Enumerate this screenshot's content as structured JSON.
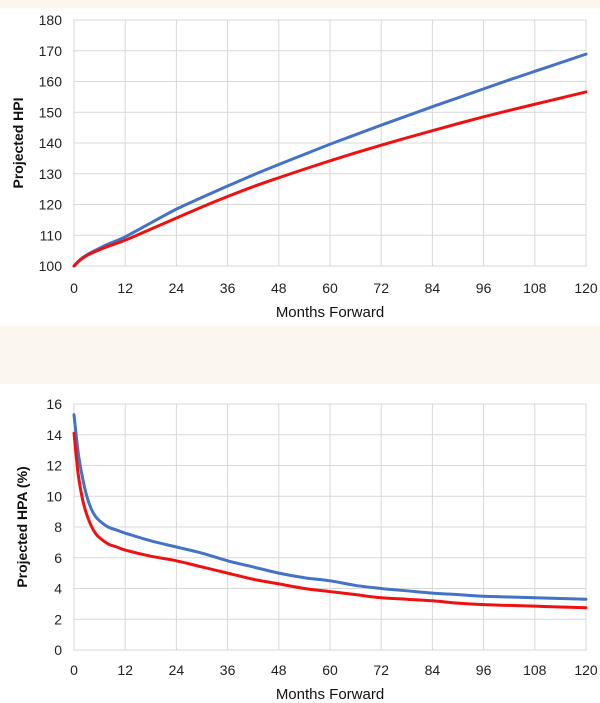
{
  "colors": {
    "series_blue": "#4472c4",
    "series_red": "#ee1111",
    "band": "#fbf7ef"
  },
  "chart_data": [
    {
      "type": "line",
      "title": "",
      "xlabel": "Months Forward",
      "ylabel": "Projected HPI",
      "xlim": [
        0,
        120
      ],
      "ylim": [
        100,
        180
      ],
      "xticks": [
        0,
        12,
        24,
        36,
        48,
        60,
        72,
        84,
        96,
        108,
        120
      ],
      "yticks": [
        100,
        110,
        120,
        130,
        140,
        150,
        160,
        170,
        180
      ],
      "grid": true,
      "legend": "none",
      "series": [
        {
          "color": "#4472c4",
          "x": [
            0,
            1,
            2,
            3,
            4,
            6,
            8,
            12,
            18,
            24,
            30,
            36,
            42,
            48,
            54,
            60,
            66,
            72,
            78,
            84,
            90,
            96,
            102,
            108,
            114,
            120
          ],
          "y": [
            100,
            101.5,
            102.7,
            103.6,
            104.4,
            105.8,
            107.1,
            109.5,
            114,
            118.5,
            122.3,
            126,
            129.6,
            133,
            136.3,
            139.6,
            142.7,
            145.8,
            148.8,
            151.8,
            154.7,
            157.6,
            160.5,
            163.3,
            166.1,
            168.9
          ]
        },
        {
          "color": "#ee1111",
          "x": [
            0,
            1,
            2,
            3,
            4,
            6,
            8,
            12,
            18,
            24,
            30,
            36,
            42,
            48,
            54,
            60,
            66,
            72,
            78,
            84,
            90,
            96,
            102,
            108,
            114,
            120
          ],
          "y": [
            100,
            101.4,
            102.5,
            103.4,
            104.1,
            105.3,
            106.4,
            108.4,
            112,
            115.6,
            119.2,
            122.6,
            125.8,
            128.7,
            131.5,
            134.2,
            136.8,
            139.3,
            141.7,
            144,
            146.3,
            148.5,
            150.6,
            152.6,
            154.6,
            156.6
          ]
        }
      ]
    },
    {
      "type": "line",
      "title": "",
      "xlabel": "Months Forward",
      "ylabel": "Projected HPA (%)",
      "xlim": [
        0,
        120
      ],
      "ylim": [
        0,
        16
      ],
      "xticks": [
        0,
        12,
        24,
        36,
        48,
        60,
        72,
        84,
        96,
        108,
        120
      ],
      "yticks": [
        0,
        2,
        4,
        6,
        8,
        10,
        12,
        14,
        16
      ],
      "grid": true,
      "legend": "none",
      "series": [
        {
          "color": "#4472c4",
          "x": [
            0,
            1,
            2,
            3,
            4,
            5,
            6,
            8,
            10,
            12,
            18,
            24,
            30,
            36,
            42,
            48,
            54,
            60,
            66,
            72,
            78,
            84,
            90,
            96,
            102,
            108,
            114,
            120
          ],
          "y": [
            15.3,
            12.8,
            11.2,
            10,
            9.2,
            8.7,
            8.4,
            8,
            7.8,
            7.6,
            7.1,
            6.7,
            6.3,
            5.8,
            5.4,
            5.0,
            4.7,
            4.5,
            4.2,
            4.0,
            3.85,
            3.7,
            3.6,
            3.5,
            3.45,
            3.4,
            3.35,
            3.3
          ]
        },
        {
          "color": "#ee1111",
          "x": [
            0,
            1,
            2,
            3,
            4,
            5,
            6,
            8,
            10,
            12,
            18,
            24,
            30,
            36,
            42,
            48,
            54,
            60,
            66,
            72,
            78,
            84,
            90,
            96,
            102,
            108,
            114,
            120
          ],
          "y": [
            14.1,
            11.4,
            9.8,
            8.8,
            8.1,
            7.6,
            7.3,
            6.9,
            6.7,
            6.5,
            6.1,
            5.8,
            5.4,
            5.0,
            4.6,
            4.3,
            4.0,
            3.8,
            3.6,
            3.4,
            3.3,
            3.2,
            3.05,
            2.95,
            2.9,
            2.85,
            2.8,
            2.75
          ]
        }
      ]
    }
  ]
}
